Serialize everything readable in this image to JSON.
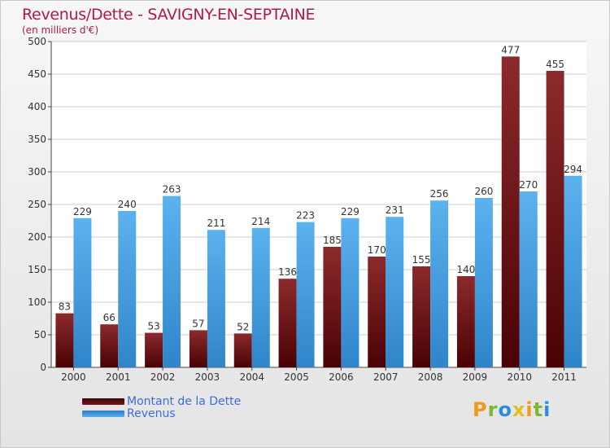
{
  "header": {
    "title": "Revenus/Dette - SAVIGNY-EN-SEPTAINE",
    "subtitle": "(en milliers d'€)"
  },
  "logo": {
    "text": "Proxiti",
    "letters": [
      "P",
      "r",
      "o",
      "x",
      "i",
      "t",
      "i"
    ]
  },
  "colors": {
    "dette": "#6b0f12",
    "revenus": "#3d9ae0",
    "title": "#b0184a",
    "legend_text": "#3a6fd8"
  },
  "chart_data": {
    "type": "bar",
    "title": "Revenus/Dette - SAVIGNY-EN-SEPTAINE",
    "ylabel": "(en milliers d'€)",
    "xlabel": "",
    "categories": [
      "2000",
      "2001",
      "2002",
      "2003",
      "2004",
      "2005",
      "2006",
      "2007",
      "2008",
      "2009",
      "2010",
      "2011"
    ],
    "series": [
      {
        "name": "Montant de la Dette",
        "color": "#6b0f12",
        "values": [
          83,
          66,
          53,
          57,
          52,
          136,
          185,
          170,
          155,
          140,
          477,
          455
        ]
      },
      {
        "name": "Revenus",
        "color": "#3d9ae0",
        "values": [
          229,
          240,
          263,
          211,
          214,
          223,
          229,
          231,
          256,
          260,
          270,
          294
        ]
      }
    ],
    "ylim": [
      0,
      500
    ],
    "yticks": [
      0,
      50,
      100,
      150,
      200,
      250,
      300,
      350,
      400,
      450,
      500
    ],
    "grid": true,
    "legend": "bottom-left"
  }
}
